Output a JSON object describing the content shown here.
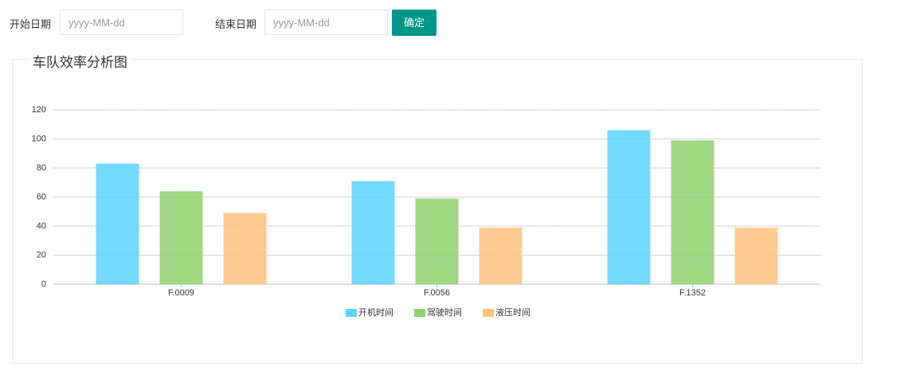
{
  "form": {
    "start_label": "开始日期",
    "start_placeholder": "yyyy-MM-dd",
    "end_label": "结束日期",
    "end_placeholder": "yyyy-MM-dd",
    "submit": "确定"
  },
  "panel": {
    "title": "车队效率分析图"
  },
  "chart_data": {
    "type": "bar",
    "categories": [
      "F.0009",
      "F.0056",
      "F.1352"
    ],
    "series": [
      {
        "name": "开机时间",
        "color": "#5cd3ff",
        "values": [
          83,
          71,
          106
        ]
      },
      {
        "name": "驾驶时间",
        "color": "#8fd16f",
        "values": [
          64,
          59,
          99
        ]
      },
      {
        "name": "液压时间",
        "color": "#ffc27d",
        "values": [
          49,
          39,
          39
        ]
      }
    ],
    "ylim": [
      0,
      120
    ],
    "yticks": [
      0,
      20,
      40,
      60,
      80,
      100,
      120
    ],
    "grid": true,
    "legend": "bottom"
  }
}
